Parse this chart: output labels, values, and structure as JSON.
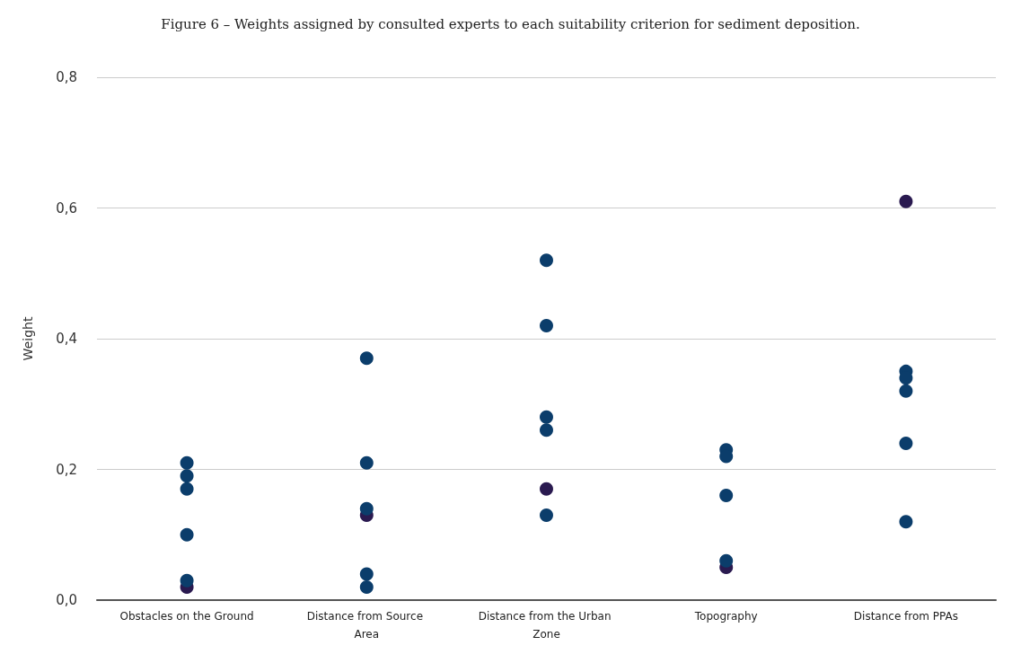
{
  "chart_data": {
    "type": "scatter",
    "title": "Figure 6 – Weights assigned by consulted experts to each suitability criterion for sediment deposition.",
    "ylabel": "Weight",
    "categories": [
      "Obstacles on the Ground",
      "Distance from Source Area",
      "Distance from the Urban Zone",
      "Topography",
      "Distance from PPAs"
    ],
    "series": [
      {
        "color": "#2a1a50",
        "x": [
          "Obstacles on the Ground",
          "Distance from Source Area",
          "Distance from the Urban Zone",
          "Topography",
          "Distance from PPAs"
        ],
        "values": [
          0.02,
          0.13,
          0.17,
          0.05,
          0.61
        ]
      },
      {
        "color": "#0b3d6b",
        "x": [
          "Obstacles on the Ground",
          "Obstacles on the Ground",
          "Obstacles on the Ground",
          "Obstacles on the Ground",
          "Obstacles on the Ground",
          "Distance from Source Area",
          "Distance from Source Area",
          "Distance from Source Area",
          "Distance from Source Area",
          "Distance from Source Area",
          "Distance from the Urban Zone",
          "Distance from the Urban Zone",
          "Distance from the Urban Zone",
          "Distance from the Urban Zone",
          "Distance from the Urban Zone",
          "Topography",
          "Topography",
          "Topography",
          "Topography",
          "Distance from PPAs",
          "Distance from PPAs",
          "Distance from PPAs",
          "Distance from PPAs",
          "Distance from PPAs"
        ],
        "values": [
          0.21,
          0.19,
          0.17,
          0.1,
          0.03,
          0.37,
          0.21,
          0.14,
          0.04,
          0.02,
          0.52,
          0.42,
          0.28,
          0.26,
          0.13,
          0.23,
          0.22,
          0.16,
          0.06,
          0.35,
          0.34,
          0.32,
          0.24,
          0.12
        ]
      }
    ],
    "ylim": [
      0,
      0.8
    ],
    "yticks": [
      {
        "value": 0,
        "label": "0,0"
      },
      {
        "value": 0.2,
        "label": "0,2"
      },
      {
        "value": 0.4,
        "label": "0,4"
      },
      {
        "value": 0.6,
        "label": "0,6"
      },
      {
        "value": 0.8,
        "label": "0,8"
      }
    ],
    "grid": "y",
    "marker": "circle"
  }
}
